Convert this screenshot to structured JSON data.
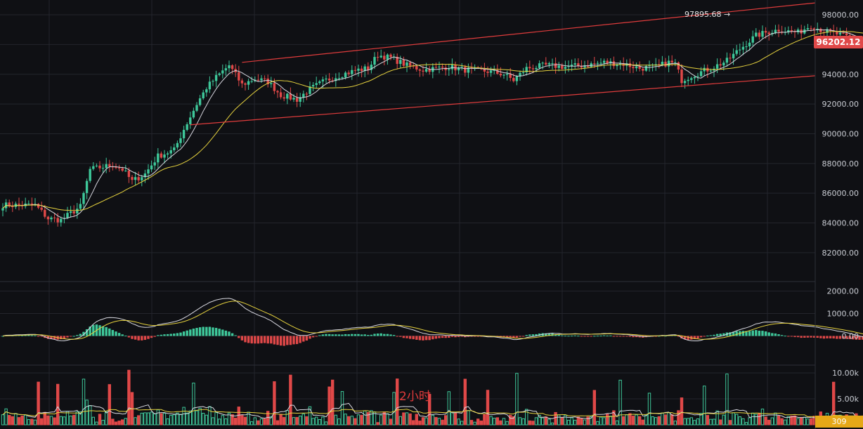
{
  "chart_data": [
    {
      "type": "candlestick",
      "panel": "price",
      "interval_label": "2小时",
      "y_ticks": [
        "98000.00",
        "96000.00",
        "94000.00",
        "92000.00",
        "90000.00",
        "88000.00",
        "86000.00",
        "84000.00",
        "82000.00"
      ],
      "y_tick_values": [
        98000,
        96000,
        94000,
        92000,
        90000,
        88000,
        86000,
        84000,
        82000
      ],
      "ylim": [
        80200,
        98900
      ],
      "last_price": "96202.12",
      "last_price_value": 96202.12,
      "max_label": "97895.68 →",
      "max_value": 97895.68,
      "channel_lines": [
        {
          "name": "",
          "from": {
            "bar": 74,
            "price": 94800
          },
          "to": {
            "bar": 268,
            "price": 98800
          }
        },
        {
          "name": "",
          "from": {
            "bar": 58,
            "price": 90600
          },
          "to": {
            "bar": 285,
            "price": 93900
          }
        }
      ],
      "price_path": [
        [
          0,
          85200
        ],
        [
          10,
          85200
        ],
        [
          14,
          84300
        ],
        [
          18,
          84200
        ],
        [
          24,
          85100
        ],
        [
          27,
          87600
        ],
        [
          34,
          87900
        ],
        [
          37,
          87600
        ],
        [
          40,
          86800
        ],
        [
          44,
          87300
        ],
        [
          48,
          88500
        ],
        [
          53,
          88900
        ],
        [
          56,
          90300
        ],
        [
          60,
          92000
        ],
        [
          63,
          93100
        ],
        [
          66,
          93800
        ],
        [
          70,
          94600
        ],
        [
          74,
          93300
        ],
        [
          78,
          93700
        ],
        [
          82,
          93500
        ],
        [
          86,
          92600
        ],
        [
          91,
          92300
        ],
        [
          95,
          93000
        ],
        [
          100,
          93600
        ],
        [
          105,
          94000
        ],
        [
          110,
          94300
        ],
        [
          113,
          94400
        ],
        [
          116,
          95300
        ],
        [
          120,
          95100
        ],
        [
          125,
          94600
        ],
        [
          130,
          94300
        ],
        [
          138,
          94500
        ],
        [
          143,
          94300
        ],
        [
          150,
          94200
        ],
        [
          155,
          94000
        ],
        [
          158,
          93600
        ],
        [
          162,
          94400
        ],
        [
          168,
          94600
        ],
        [
          174,
          94500
        ],
        [
          180,
          94600
        ],
        [
          186,
          94800
        ],
        [
          192,
          94700
        ],
        [
          197,
          94400
        ],
        [
          202,
          94500
        ],
        [
          206,
          94800
        ],
        [
          208,
          94700
        ],
        [
          210,
          93600
        ],
        [
          214,
          94000
        ],
        [
          219,
          94400
        ],
        [
          224,
          94900
        ],
        [
          228,
          95700
        ],
        [
          233,
          96600
        ],
        [
          236,
          96800
        ],
        [
          240,
          97000
        ],
        [
          246,
          96800
        ],
        [
          250,
          97300
        ],
        [
          254,
          96900
        ],
        [
          258,
          96700
        ],
        [
          264,
          96300
        ],
        [
          268,
          96100
        ],
        [
          271,
          96200
        ]
      ],
      "ma_short_color": "#d8d8e0",
      "ma_long_color": "#e6d23e",
      "up_color": "#3ec89a",
      "down_color": "#e04848"
    },
    {
      "type": "macd",
      "panel": "indicator",
      "y_ticks": [
        "2000.00",
        "1000.00",
        "0.00"
      ],
      "y_tick_values": [
        2000,
        1000,
        0
      ],
      "ylim": [
        -1300,
        2300
      ]
    },
    {
      "type": "volume",
      "panel": "volume",
      "y_ticks": [
        "10.00k",
        "5.00k"
      ],
      "y_tick_values": [
        10000,
        5000
      ],
      "ylim": [
        0,
        11500
      ],
      "last_volume": "309"
    }
  ],
  "colors": {
    "background": "#0f1014",
    "grid": "#23252c",
    "axis_text": "#c9ccd3",
    "price_tag": "#e04848",
    "volume_tag": "#e6a817",
    "channel": "#e03c3c"
  }
}
